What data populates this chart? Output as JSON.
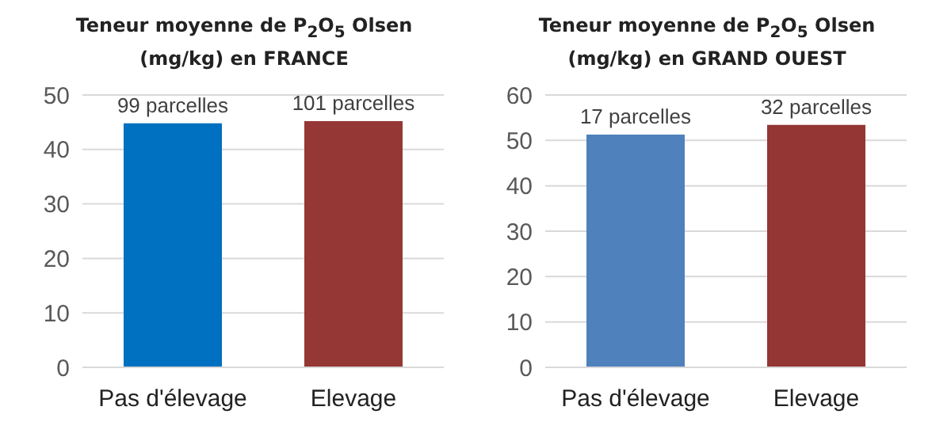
{
  "chart_data": [
    {
      "type": "bar",
      "title": "Teneur moyenne de P$_{2}$O$_{5}$ Olsen (mg/kg) en FRANCE",
      "categories": [
        "Pas d'élevage",
        "Elevage"
      ],
      "values": [
        44.8,
        45.2
      ],
      "colors": [
        "#0070c0",
        "#953735"
      ],
      "annotations": [
        {
          "text": "99 parcelles",
          "x": "Pas d'élevage",
          "y": 44.8
        },
        {
          "text": "101 parcelles",
          "x": "Elevage",
          "y": 45.2
        }
      ],
      "ylim": [
        0,
        50
      ],
      "yticks": [
        0,
        10,
        20,
        30,
        40,
        50
      ],
      "grid": "y"
    },
    {
      "type": "bar",
      "title": "Teneur moyenne de P$_{2}$O$_{5}$ Olsen (mg/kg) en GRAND OUEST",
      "categories": [
        "Pas d'élevage",
        "Elevage"
      ],
      "values": [
        51.3,
        53.4
      ],
      "colors": [
        "#4f81bd",
        "#943634"
      ],
      "annotations": [
        {
          "text": "17 parcelles",
          "x": "Pas d'élevage",
          "y": 51.3
        },
        {
          "text": "32 parcelles",
          "x": "Elevage",
          "y": 53.4
        }
      ],
      "ylim": [
        0,
        60
      ],
      "yticks": [
        0,
        10,
        20,
        30,
        40,
        50,
        60
      ],
      "grid": "y"
    }
  ]
}
